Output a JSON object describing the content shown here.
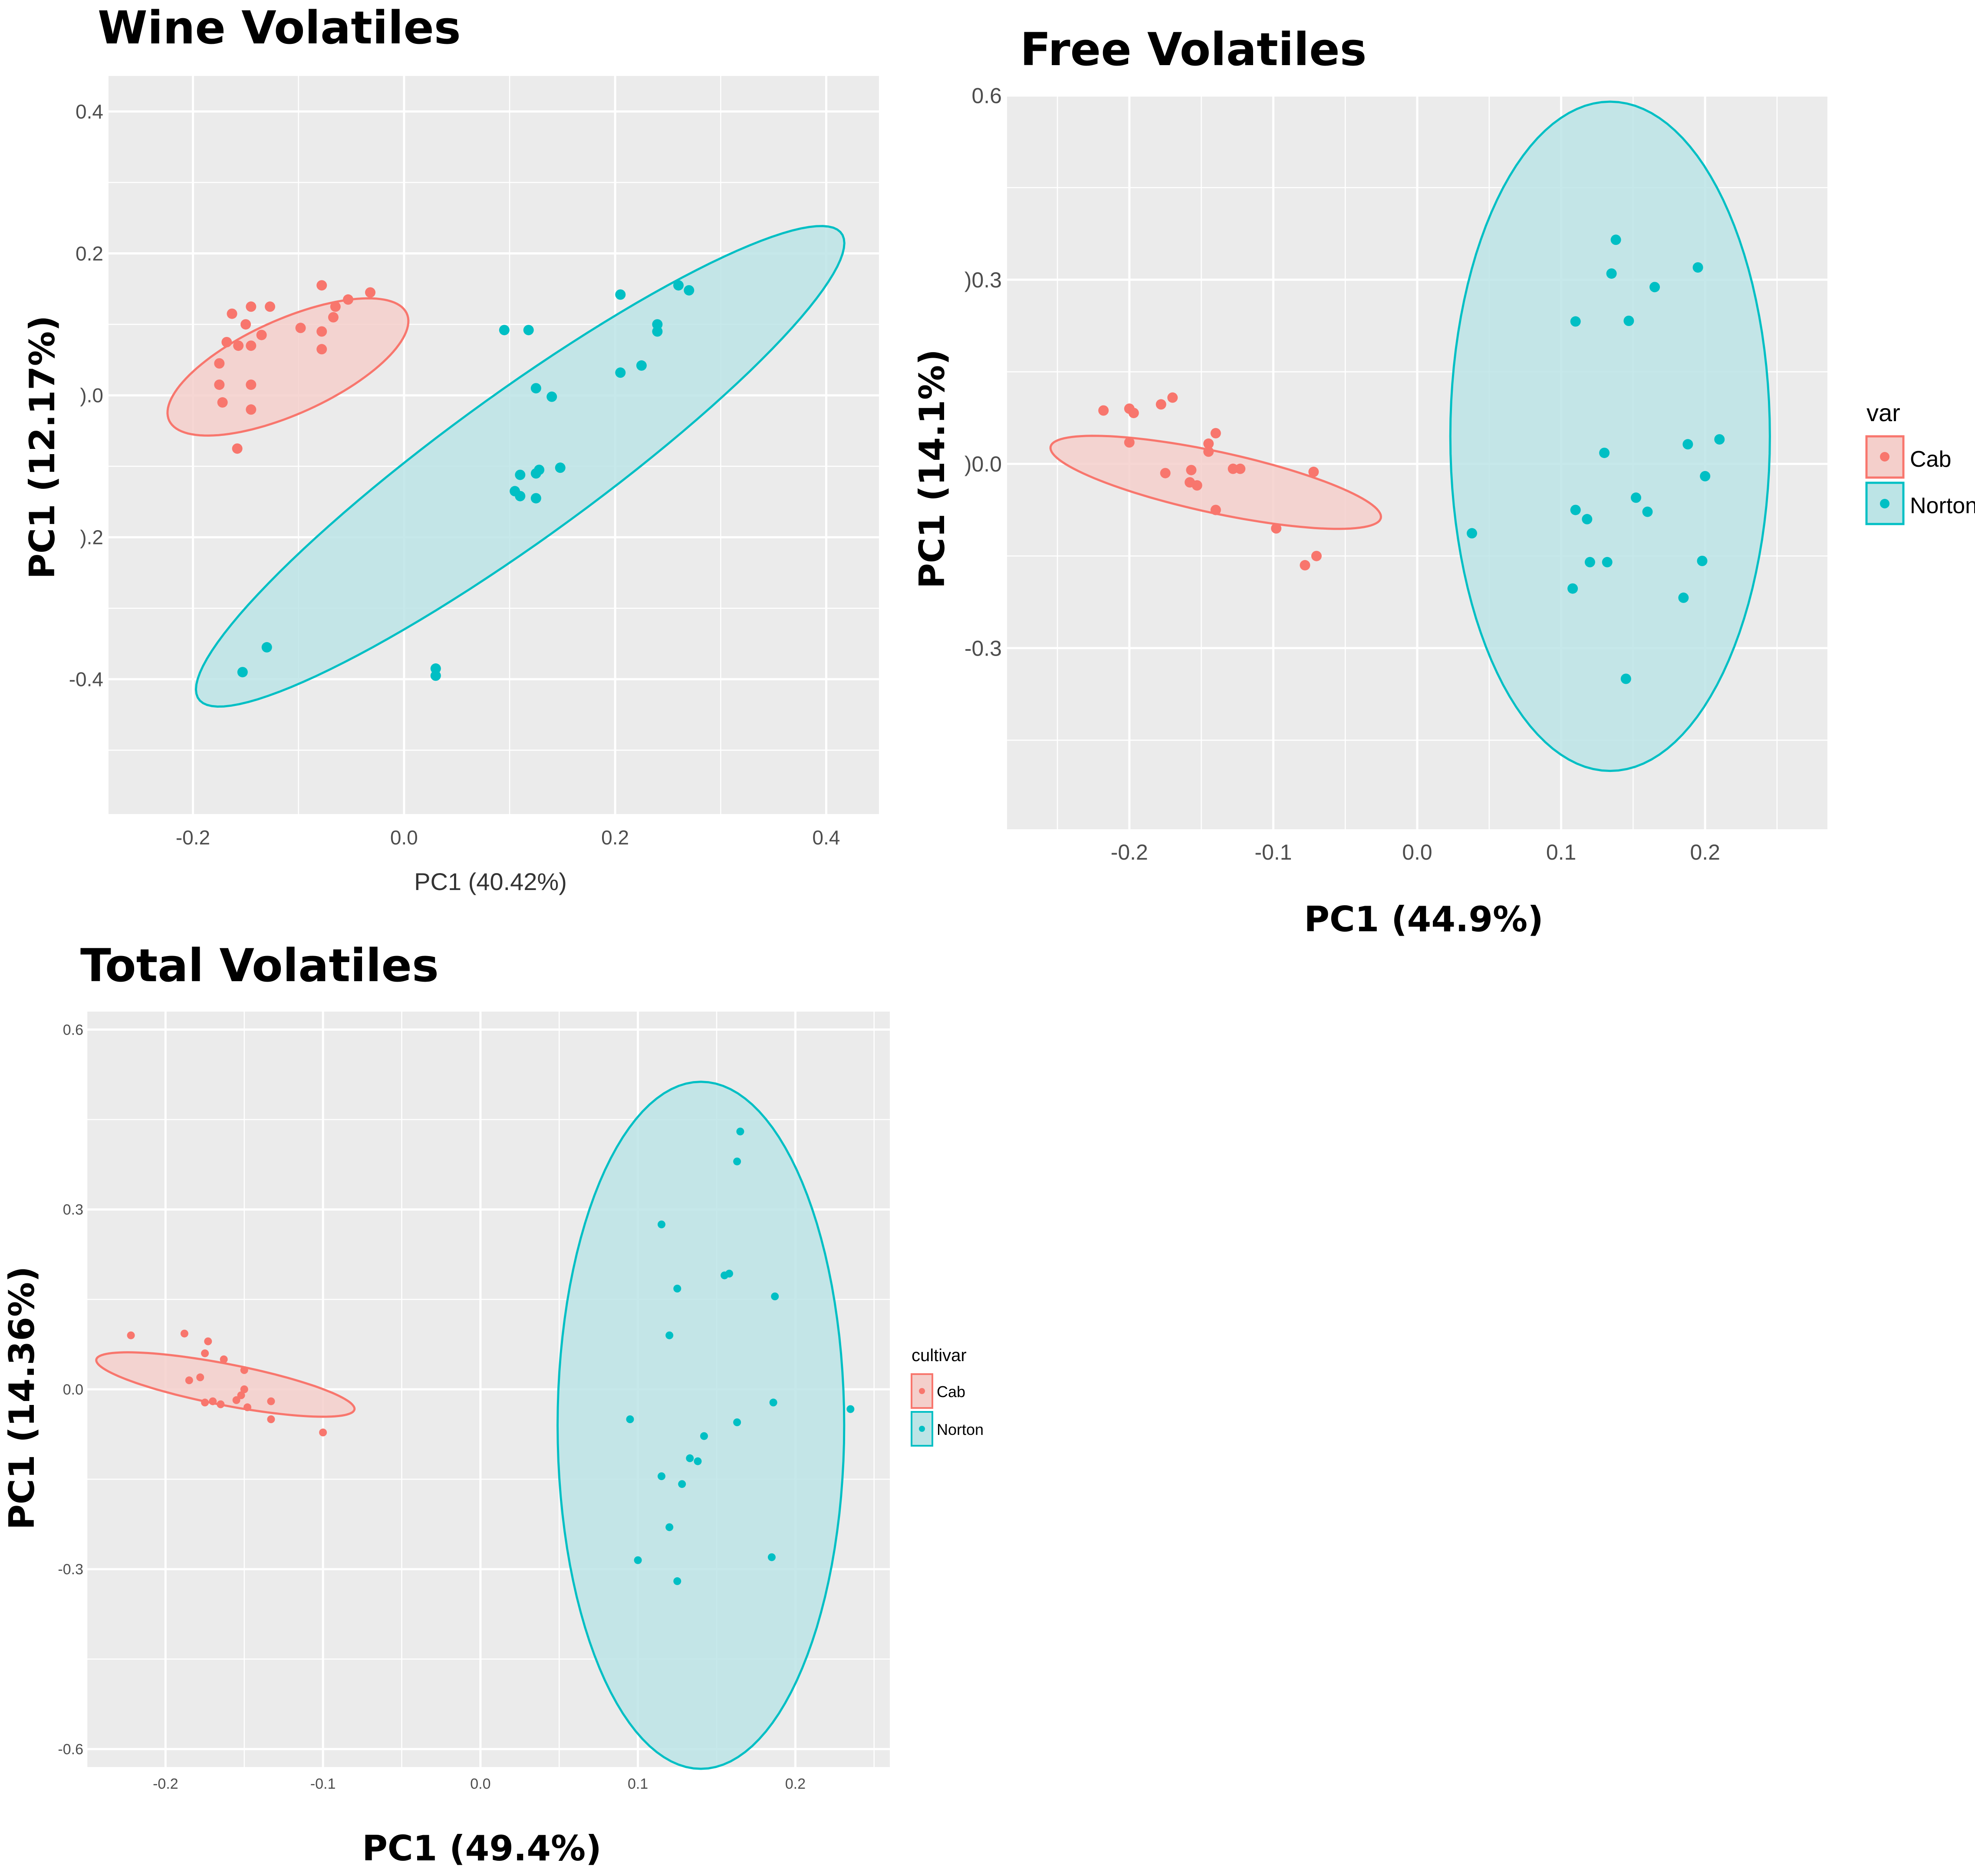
{
  "colors": {
    "cab": "#F8766D",
    "cab_fill": "#F4CFCB",
    "norton": "#00BFC4",
    "norton_fill": "#BCE4E6",
    "panel_bg": "#EBEBEB",
    "grid": "#FFFFFF"
  },
  "chart_data": [
    {
      "type": "scatter",
      "title": "Wine Volatiles",
      "xlabel": "PC1 (40.42%)",
      "ylabel": "PC1 (12.17%)",
      "xlim": [
        -0.28,
        0.45
      ],
      "ylim": [
        -0.59,
        0.45
      ],
      "xticks": [
        -0.2,
        0.0,
        0.2,
        0.4
      ],
      "xtick_labels": [
        "-0.2",
        "0.0",
        "0.2",
        "0.4"
      ],
      "yticks": [
        0.4,
        0.2,
        0.0,
        -0.2,
        -0.4
      ],
      "ytick_labels": [
        "0.4",
        "0.2",
        ").0",
        ").2",
        "-0.4"
      ],
      "legend": null,
      "series": [
        {
          "name": "Cab",
          "points": [
            [
              -0.078,
              0.155
            ],
            [
              -0.032,
              0.145
            ],
            [
              -0.053,
              0.135
            ],
            [
              -0.065,
              0.125
            ],
            [
              -0.145,
              0.125
            ],
            [
              -0.127,
              0.125
            ],
            [
              -0.163,
              0.115
            ],
            [
              -0.067,
              0.11
            ],
            [
              -0.15,
              0.1
            ],
            [
              -0.098,
              0.095
            ],
            [
              -0.078,
              0.09
            ],
            [
              -0.135,
              0.085
            ],
            [
              -0.168,
              0.075
            ],
            [
              -0.145,
              0.07
            ],
            [
              -0.157,
              0.07
            ],
            [
              -0.078,
              0.065
            ],
            [
              -0.175,
              0.045
            ],
            [
              -0.175,
              0.015
            ],
            [
              -0.145,
              0.015
            ],
            [
              -0.172,
              -0.01
            ],
            [
              -0.145,
              -0.02
            ],
            [
              -0.158,
              -0.075
            ]
          ],
          "ellipse": {
            "center": [
              -0.11,
              0.04
            ],
            "semi_major": 0.137,
            "semi_minor": 0.06,
            "angle_deg": 38
          }
        },
        {
          "name": "Norton",
          "points": [
            [
              0.26,
              0.155
            ],
            [
              0.27,
              0.148
            ],
            [
              0.205,
              0.142
            ],
            [
              0.24,
              0.1
            ],
            [
              0.24,
              0.09
            ],
            [
              0.095,
              0.092
            ],
            [
              0.118,
              0.092
            ],
            [
              0.225,
              0.042
            ],
            [
              0.205,
              0.032
            ],
            [
              0.125,
              0.01
            ],
            [
              0.14,
              -0.002
            ],
            [
              0.148,
              -0.102
            ],
            [
              0.128,
              -0.105
            ],
            [
              0.125,
              -0.11
            ],
            [
              0.11,
              -0.112
            ],
            [
              0.105,
              -0.135
            ],
            [
              0.11,
              -0.142
            ],
            [
              0.125,
              -0.145
            ],
            [
              -0.13,
              -0.355
            ],
            [
              -0.153,
              -0.39
            ],
            [
              0.03,
              -0.385
            ],
            [
              0.03,
              -0.395
            ]
          ],
          "ellipse": {
            "center": [
              0.11,
              -0.1
            ],
            "semi_major": 0.449,
            "semi_minor": 0.086,
            "angle_deg": 48
          }
        }
      ]
    },
    {
      "type": "scatter",
      "title": "Free Volatiles",
      "xlabel": "PC1 (44.9%)",
      "ylabel": "PC1 (14.1%)",
      "xlim": [
        -0.285,
        0.285
      ],
      "ylim": [
        -0.595,
        0.6
      ],
      "xticks": [
        -0.2,
        -0.1,
        0.0,
        0.1,
        0.2
      ],
      "xtick_labels": [
        "-0.2",
        "-0.1",
        "0.0",
        "0.1",
        "0.2"
      ],
      "yticks": [
        0.6,
        0.3,
        0.0,
        -0.3
      ],
      "ytick_labels": [
        "0.6",
        ")0.3",
        ")0.0",
        "-0.3"
      ],
      "legend": {
        "title": "var",
        "entries": [
          "Cab",
          "Norton"
        ]
      },
      "series": [
        {
          "name": "Cab",
          "points": [
            [
              -0.218,
              0.087
            ],
            [
              -0.2,
              0.09
            ],
            [
              -0.197,
              0.083
            ],
            [
              -0.178,
              0.097
            ],
            [
              -0.17,
              0.108
            ],
            [
              -0.2,
              0.035
            ],
            [
              -0.14,
              0.05
            ],
            [
              -0.145,
              0.033
            ],
            [
              -0.145,
              0.02
            ],
            [
              -0.157,
              -0.01
            ],
            [
              -0.158,
              -0.03
            ],
            [
              -0.153,
              -0.035
            ],
            [
              -0.175,
              -0.015
            ],
            [
              -0.128,
              -0.008
            ],
            [
              -0.123,
              -0.008
            ],
            [
              -0.072,
              -0.013
            ],
            [
              -0.14,
              -0.075
            ],
            [
              -0.098,
              -0.105
            ],
            [
              -0.078,
              -0.165
            ],
            [
              -0.07,
              -0.15
            ]
          ],
          "ellipse": {
            "center": [
              -0.14,
              -0.03
            ],
            "semi_major": 0.13,
            "semi_minor": 0.045,
            "angle_deg": -30
          }
        },
        {
          "name": "Norton",
          "points": [
            [
              0.138,
              0.365
            ],
            [
              0.135,
              0.31
            ],
            [
              0.195,
              0.32
            ],
            [
              0.165,
              0.288
            ],
            [
              0.11,
              0.232
            ],
            [
              0.147,
              0.233
            ],
            [
              0.21,
              0.04
            ],
            [
              0.188,
              0.032
            ],
            [
              0.13,
              0.018
            ],
            [
              0.2,
              -0.02
            ],
            [
              0.11,
              -0.075
            ],
            [
              0.152,
              -0.055
            ],
            [
              0.16,
              -0.078
            ],
            [
              0.118,
              -0.09
            ],
            [
              0.12,
              -0.16
            ],
            [
              0.132,
              -0.16
            ],
            [
              0.198,
              -0.158
            ],
            [
              0.108,
              -0.203
            ],
            [
              0.185,
              -0.218
            ],
            [
              0.145,
              -0.35
            ],
            [
              0.038,
              -0.113
            ]
          ],
          "ellipse": {
            "center": [
              0.134,
              0.045
            ],
            "semi_major": 0.545,
            "semi_minor": 0.111,
            "angle_deg": 90
          }
        }
      ]
    },
    {
      "type": "scatter",
      "title": "Total Volatiles",
      "xlabel": "PC1 (49.4%)",
      "ylabel": "PC1 (14.36%)",
      "xlim": [
        -0.25,
        0.26
      ],
      "ylim": [
        -0.63,
        0.63
      ],
      "xticks": [
        -0.2,
        -0.1,
        0.0,
        0.1,
        0.2
      ],
      "xtick_labels": [
        "-0.2",
        "-0.1",
        "0.0",
        "0.1",
        "0.2"
      ],
      "yticks": [
        0.6,
        0.3,
        0.0,
        -0.3,
        -0.6
      ],
      "ytick_labels": [
        "0.6",
        "0.3",
        "0.0",
        "-0.3",
        "-0.6"
      ],
      "legend": {
        "title": "cultivar",
        "entries": [
          "Cab",
          "Norton"
        ]
      },
      "series": [
        {
          "name": "Cab",
          "points": [
            [
              -0.222,
              0.09
            ],
            [
              -0.188,
              0.093
            ],
            [
              -0.173,
              0.08
            ],
            [
              -0.175,
              0.06
            ],
            [
              -0.15,
              0.032
            ],
            [
              -0.163,
              0.05
            ],
            [
              -0.178,
              0.02
            ],
            [
              -0.185,
              0.015
            ],
            [
              -0.15,
              0.0
            ],
            [
              -0.152,
              -0.01
            ],
            [
              -0.155,
              -0.018
            ],
            [
              -0.17,
              -0.02
            ],
            [
              -0.175,
              -0.022
            ],
            [
              -0.165,
              -0.025
            ],
            [
              -0.148,
              -0.03
            ],
            [
              -0.133,
              -0.02
            ],
            [
              -0.133,
              -0.05
            ],
            [
              -0.1,
              -0.072
            ]
          ],
          "ellipse": {
            "center": [
              -0.162,
              0.008
            ],
            "semi_major": 0.093,
            "semi_minor": 0.031,
            "angle_deg": -30
          }
        },
        {
          "name": "Norton",
          "points": [
            [
              0.165,
              0.43
            ],
            [
              0.163,
              0.38
            ],
            [
              0.115,
              0.275
            ],
            [
              0.125,
              0.168
            ],
            [
              0.155,
              0.19
            ],
            [
              0.158,
              0.193
            ],
            [
              0.187,
              0.155
            ],
            [
              0.12,
              0.09
            ],
            [
              0.186,
              -0.022
            ],
            [
              0.095,
              -0.05
            ],
            [
              0.163,
              -0.055
            ],
            [
              0.142,
              -0.078
            ],
            [
              0.235,
              -0.033
            ],
            [
              0.133,
              -0.115
            ],
            [
              0.138,
              -0.12
            ],
            [
              0.115,
              -0.145
            ],
            [
              0.128,
              -0.158
            ],
            [
              0.12,
              -0.23
            ],
            [
              0.1,
              -0.285
            ],
            [
              0.185,
              -0.28
            ],
            [
              0.125,
              -0.32
            ]
          ],
          "ellipse": {
            "center": [
              0.14,
              -0.06
            ],
            "semi_major": 0.573,
            "semi_minor": 0.091,
            "angle_deg": 90
          }
        }
      ]
    }
  ]
}
